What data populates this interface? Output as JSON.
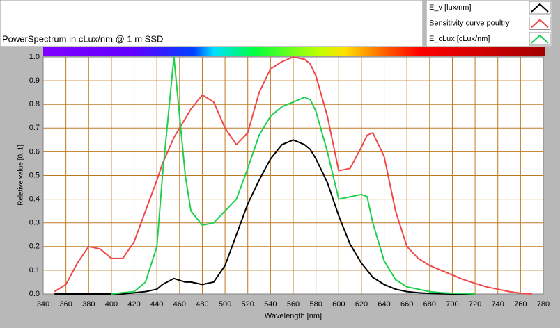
{
  "chart_data": {
    "type": "line",
    "title": "PowerSpectrum in cLux/nm @ 1 m SSD",
    "xlabel": "Wavelength [nm]",
    "ylabel": "Relative value [0..1]",
    "x": [
      350,
      360,
      370,
      380,
      390,
      400,
      410,
      420,
      430,
      440,
      445,
      455,
      465,
      470,
      480,
      490,
      500,
      510,
      520,
      530,
      540,
      550,
      560,
      570,
      575,
      580,
      590,
      600,
      610,
      620,
      625,
      630,
      640,
      650,
      660,
      670,
      680,
      690,
      700,
      710,
      720,
      730,
      740,
      750,
      760,
      770
    ],
    "series": [
      {
        "name": "E_v [lux/nm]",
        "color": "#000000",
        "values": [
          0,
          0,
          0,
          0,
          0,
          0,
          0,
          0.005,
          0.01,
          0.02,
          0.04,
          0.065,
          0.05,
          0.05,
          0.04,
          0.05,
          0.12,
          0.25,
          0.38,
          0.48,
          0.57,
          0.63,
          0.65,
          0.63,
          0.61,
          0.57,
          0.47,
          0.33,
          0.21,
          0.13,
          0.1,
          0.07,
          0.04,
          0.02,
          0.01,
          0.005,
          0.002,
          0.001,
          0,
          0,
          0,
          null,
          null,
          null,
          null,
          null
        ]
      },
      {
        "name": "Sensitivity curve poultry",
        "color": "#f04848",
        "values": [
          0.01,
          0.04,
          0.13,
          0.2,
          0.19,
          0.15,
          0.15,
          0.22,
          0.35,
          0.48,
          0.55,
          0.66,
          0.74,
          0.78,
          0.84,
          0.81,
          0.7,
          0.63,
          0.68,
          0.85,
          0.95,
          0.98,
          1.0,
          0.99,
          0.97,
          0.92,
          0.75,
          0.52,
          0.53,
          0.62,
          0.67,
          0.68,
          0.58,
          0.35,
          0.2,
          0.15,
          0.12,
          0.1,
          0.08,
          0.06,
          0.045,
          0.03,
          0.02,
          0.01,
          0.003,
          0
        ]
      },
      {
        "name": "E_cLux [cLux/nm]",
        "color": "#1ed04e",
        "values": [
          null,
          null,
          null,
          null,
          null,
          0,
          0.005,
          0.01,
          0.05,
          0.2,
          0.5,
          1.0,
          0.5,
          0.35,
          0.29,
          0.3,
          0.35,
          0.4,
          0.53,
          0.67,
          0.75,
          0.79,
          0.81,
          0.83,
          0.82,
          0.77,
          0.6,
          0.4,
          0.41,
          0.42,
          0.41,
          0.3,
          0.14,
          0.06,
          0.03,
          0.02,
          0.01,
          0.005,
          0.003,
          0.002,
          0,
          null,
          null,
          null,
          null,
          null
        ]
      }
    ],
    "xlim": [
      340,
      780
    ],
    "xticks": [
      340,
      360,
      380,
      400,
      420,
      440,
      460,
      480,
      500,
      520,
      540,
      560,
      580,
      600,
      620,
      640,
      660,
      680,
      700,
      720,
      740,
      760,
      780
    ],
    "ylim": [
      0,
      1
    ],
    "yticks": [
      {
        "value": 0,
        "label": "0.0"
      },
      0.1,
      0.2,
      0.3,
      0.4,
      0.5,
      0.6,
      0.7,
      0.8,
      0.9,
      {
        "value": 1,
        "label": "1.0"
      }
    ],
    "grid": true,
    "grid_color": "#c07820",
    "legend": "top-right"
  }
}
